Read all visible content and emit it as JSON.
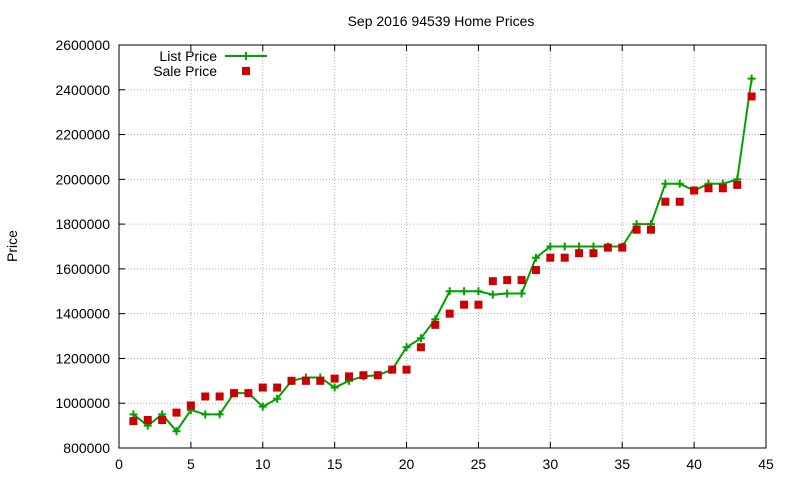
{
  "chart_data": {
    "type": "line",
    "title": "Sep 2016 94539 Home Prices",
    "xlabel": "",
    "ylabel": "Price",
    "xlim": [
      0,
      45
    ],
    "ylim": [
      800000,
      2600000
    ],
    "x_ticks": [
      0,
      5,
      10,
      15,
      20,
      25,
      30,
      35,
      40,
      45
    ],
    "x_tick_labels": [
      "0",
      "5",
      "10",
      "15",
      "20",
      "25",
      "30",
      "35",
      "40",
      "45"
    ],
    "y_ticks": [
      800000,
      1000000,
      1200000,
      1400000,
      1600000,
      1800000,
      2000000,
      2200000,
      2400000,
      2600000
    ],
    "y_tick_labels": [
      "800000",
      "1000000",
      "1200000",
      "1400000",
      "1600000",
      "1800000",
      "2000000",
      "2200000",
      "2400000",
      "2600000"
    ],
    "grid": true,
    "legend_position": "top-left",
    "x": [
      1,
      2,
      3,
      4,
      5,
      6,
      7,
      8,
      9,
      10,
      11,
      12,
      13,
      14,
      15,
      16,
      17,
      18,
      19,
      20,
      21,
      22,
      23,
      24,
      25,
      26,
      27,
      28,
      29,
      30,
      31,
      32,
      33,
      34,
      35,
      36,
      37,
      38,
      39,
      40,
      41,
      42,
      43,
      44
    ],
    "series": [
      {
        "name": "List Price",
        "style": "line-plus",
        "color": "#00a000",
        "values": [
          950000,
          900000,
          950000,
          875000,
          970000,
          950000,
          950000,
          1045000,
          1045000,
          985000,
          1020000,
          1100000,
          1115000,
          1115000,
          1070000,
          1100000,
          1120000,
          1125000,
          1150000,
          1250000,
          1290000,
          1375000,
          1500000,
          1500000,
          1500000,
          1485000,
          1490000,
          1490000,
          1650000,
          1700000,
          1700000,
          1700000,
          1700000,
          1700000,
          1700000,
          1800000,
          1800000,
          1980000,
          1980000,
          1950000,
          1980000,
          1980000,
          2000000,
          2450000
        ]
      },
      {
        "name": "Sale Price",
        "style": "square",
        "color": "#cc0000",
        "values": [
          920000,
          925000,
          925000,
          958000,
          990000,
          1030000,
          1030000,
          1045000,
          1045000,
          1070000,
          1070000,
          1100000,
          1100000,
          1100000,
          1110000,
          1120000,
          1125000,
          1125000,
          1150000,
          1150000,
          1250000,
          1350000,
          1400000,
          1440000,
          1440000,
          1545000,
          1550000,
          1550000,
          1595000,
          1650000,
          1650000,
          1670000,
          1670000,
          1695000,
          1695000,
          1775000,
          1775000,
          1900000,
          1900000,
          1950000,
          1960000,
          1960000,
          1975000,
          2370000
        ]
      }
    ]
  }
}
